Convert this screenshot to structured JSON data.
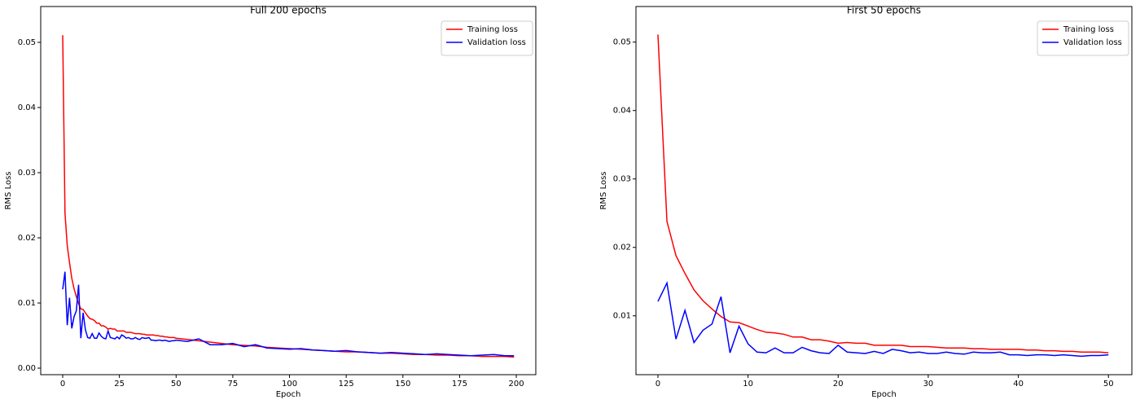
{
  "chart_data": [
    {
      "type": "line",
      "title": "Full 200 epochs",
      "x_label": "Epoch",
      "y_label": "RMS Loss",
      "x": [
        0,
        1,
        2,
        3,
        4,
        5,
        6,
        7,
        8,
        9,
        10,
        11,
        12,
        13,
        14,
        15,
        16,
        17,
        18,
        19,
        20,
        21,
        22,
        23,
        24,
        25,
        26,
        27,
        28,
        29,
        30,
        31,
        32,
        33,
        34,
        35,
        36,
        37,
        38,
        39,
        40,
        41,
        42,
        43,
        44,
        45,
        46,
        47,
        48,
        49,
        50,
        55,
        60,
        65,
        70,
        75,
        80,
        85,
        90,
        95,
        100,
        105,
        110,
        115,
        120,
        125,
        130,
        135,
        140,
        145,
        150,
        155,
        160,
        165,
        170,
        175,
        180,
        185,
        190,
        195,
        199
      ],
      "series": [
        {
          "name": "Training loss",
          "color": "#ff0000",
          "values": [
            0.0511,
            0.0238,
            0.0188,
            0.0162,
            0.0138,
            0.0122,
            0.011,
            0.0099,
            0.0091,
            0.009,
            0.0085,
            0.008,
            0.0076,
            0.0075,
            0.0073,
            0.0069,
            0.0069,
            0.0065,
            0.0065,
            0.0063,
            0.006,
            0.0061,
            0.006,
            0.006,
            0.0057,
            0.0057,
            0.0057,
            0.0057,
            0.0055,
            0.0055,
            0.0055,
            0.0054,
            0.0053,
            0.0053,
            0.0053,
            0.0052,
            0.0052,
            0.0051,
            0.0051,
            0.0051,
            0.0051,
            0.005,
            0.005,
            0.0049,
            0.0049,
            0.0048,
            0.0048,
            0.0047,
            0.0047,
            0.0047,
            0.0046,
            0.0044,
            0.0042,
            0.004,
            0.0038,
            0.0036,
            0.0035,
            0.0034,
            0.0032,
            0.0031,
            0.003,
            0.0029,
            0.0028,
            0.0027,
            0.0026,
            0.0025,
            0.0025,
            0.0024,
            0.0023,
            0.0023,
            0.0022,
            0.0021,
            0.0021,
            0.002,
            0.002,
            0.0019,
            0.0019,
            0.0018,
            0.0018,
            0.0018,
            0.0017
          ]
        },
        {
          "name": "Validation loss",
          "color": "#0000ff",
          "values": [
            0.0121,
            0.0148,
            0.0066,
            0.0108,
            0.0061,
            0.0079,
            0.0088,
            0.0128,
            0.0046,
            0.0085,
            0.0059,
            0.0047,
            0.0046,
            0.0053,
            0.0046,
            0.0046,
            0.0054,
            0.0049,
            0.0046,
            0.0045,
            0.0057,
            0.0047,
            0.0046,
            0.0045,
            0.0048,
            0.0045,
            0.0051,
            0.0049,
            0.0046,
            0.0047,
            0.0045,
            0.0045,
            0.0047,
            0.0045,
            0.0044,
            0.0047,
            0.0046,
            0.0046,
            0.0047,
            0.0043,
            0.0043,
            0.0042,
            0.0043,
            0.0043,
            0.0042,
            0.0043,
            0.0042,
            0.0041,
            0.0042,
            0.0042,
            0.0043,
            0.0041,
            0.0045,
            0.0036,
            0.0036,
            0.0038,
            0.0033,
            0.0036,
            0.0031,
            0.003,
            0.0029,
            0.003,
            0.0028,
            0.0027,
            0.0026,
            0.0027,
            0.0025,
            0.0024,
            0.0023,
            0.0024,
            0.0023,
            0.0022,
            0.0021,
            0.0022,
            0.0021,
            0.002,
            0.0019,
            0.002,
            0.0021,
            0.0019,
            0.0019
          ]
        }
      ],
      "xlim": [
        -9.7,
        208.6
      ],
      "xticks": [
        0,
        25,
        50,
        75,
        100,
        125,
        150,
        175,
        200
      ],
      "ylim": [
        -0.001,
        0.0555
      ],
      "yticks": [
        {
          "value": 0,
          "label": "0.00"
        },
        0.01,
        0.02,
        0.03,
        0.04,
        0.05
      ],
      "legend": "upper right"
    },
    {
      "type": "line",
      "title": "First 50 epochs",
      "x_label": "Epoch",
      "y_label": "RMS Loss",
      "x": [
        0,
        1,
        2,
        3,
        4,
        5,
        6,
        7,
        8,
        9,
        10,
        11,
        12,
        13,
        14,
        15,
        16,
        17,
        18,
        19,
        20,
        21,
        22,
        23,
        24,
        25,
        26,
        27,
        28,
        29,
        30,
        31,
        32,
        33,
        34,
        35,
        36,
        37,
        38,
        39,
        40,
        41,
        42,
        43,
        44,
        45,
        46,
        47,
        48,
        49,
        50
      ],
      "series": [
        {
          "name": "Training loss",
          "color": "#ff0000",
          "values": [
            0.0511,
            0.0238,
            0.0188,
            0.0162,
            0.0138,
            0.0122,
            0.011,
            0.0099,
            0.0091,
            0.009,
            0.0085,
            0.008,
            0.0076,
            0.0075,
            0.0073,
            0.0069,
            0.0069,
            0.0065,
            0.0065,
            0.0063,
            0.006,
            0.0061,
            0.006,
            0.006,
            0.0057,
            0.0057,
            0.0057,
            0.0057,
            0.0055,
            0.0055,
            0.0055,
            0.0054,
            0.0053,
            0.0053,
            0.0053,
            0.0052,
            0.0052,
            0.0051,
            0.0051,
            0.0051,
            0.0051,
            0.005,
            0.005,
            0.0049,
            0.0049,
            0.0048,
            0.0048,
            0.0047,
            0.0047,
            0.0047,
            0.0046
          ]
        },
        {
          "name": "Validation loss",
          "color": "#0000ff",
          "values": [
            0.0121,
            0.0148,
            0.0066,
            0.0108,
            0.0061,
            0.0079,
            0.0088,
            0.0128,
            0.0046,
            0.0085,
            0.0059,
            0.0047,
            0.0046,
            0.0053,
            0.0046,
            0.0046,
            0.0054,
            0.0049,
            0.0046,
            0.0045,
            0.0057,
            0.0047,
            0.0046,
            0.0045,
            0.0048,
            0.0045,
            0.0051,
            0.0049,
            0.0046,
            0.0047,
            0.0045,
            0.0045,
            0.0047,
            0.0045,
            0.0044,
            0.0047,
            0.0046,
            0.0046,
            0.0047,
            0.0043,
            0.0043,
            0.0042,
            0.0043,
            0.0043,
            0.0042,
            0.0043,
            0.0042,
            0.0041,
            0.0042,
            0.0042,
            0.0043
          ]
        }
      ],
      "xlim": [
        -2.44,
        52.6
      ],
      "xticks": [
        0,
        10,
        20,
        30,
        40,
        50
      ],
      "ylim": [
        0.0014,
        0.0552
      ],
      "yticks": [
        0.01,
        0.02,
        0.03,
        0.04,
        0.05
      ],
      "legend": "upper right"
    }
  ]
}
